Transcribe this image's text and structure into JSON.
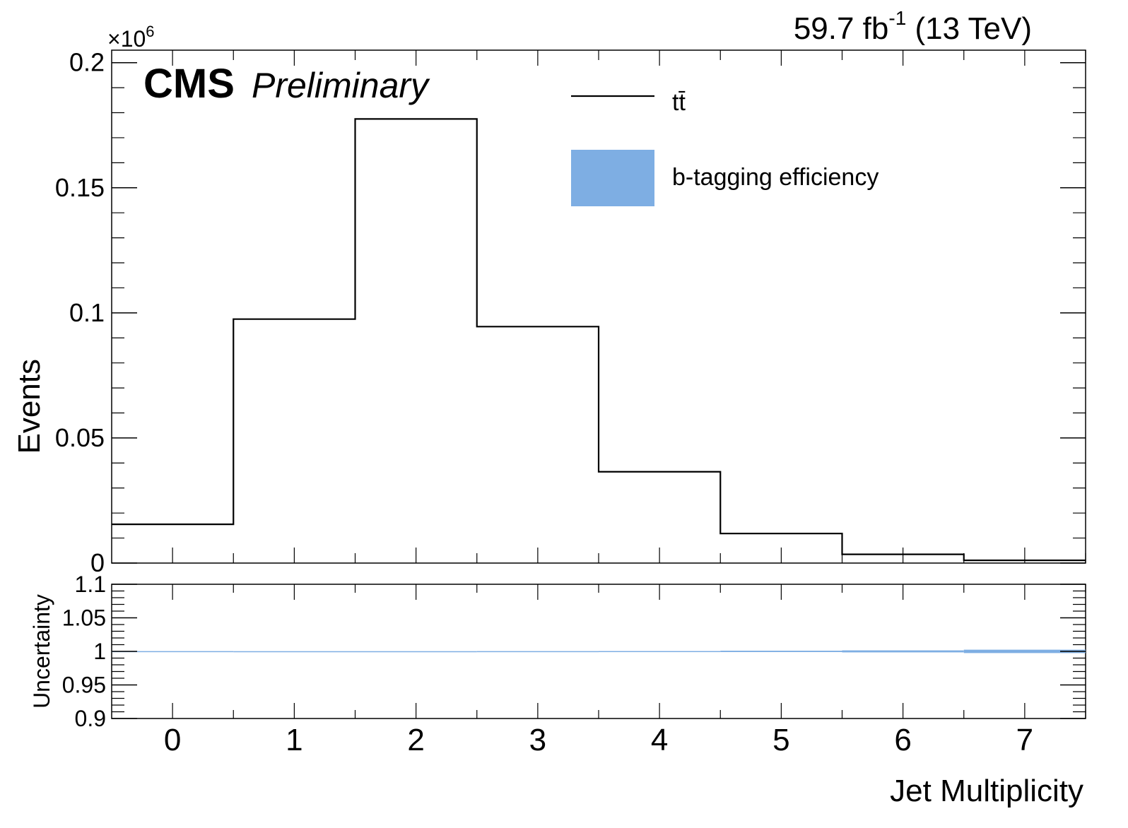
{
  "header": {
    "lumi_text": "59.7 fb",
    "lumi_sup": "-1",
    "energy_text": " (13 TeV)",
    "cms_label": "CMS",
    "prelim_label": "Preliminary",
    "exponent_base": "×10",
    "exponent_power": "6"
  },
  "legend": {
    "ttbar_label": "tt̄",
    "btag_label": "b-tagging efficiency",
    "line_color": "#000000",
    "band_color": "#7eaee3"
  },
  "chart_data": [
    {
      "type": "histogram-step",
      "name": "main-panel",
      "x": [
        0,
        1,
        2,
        3,
        4,
        5,
        6,
        7
      ],
      "bin_edges": [
        -0.5,
        0.5,
        1.5,
        2.5,
        3.5,
        4.5,
        5.5,
        6.5,
        7.5
      ],
      "series": [
        {
          "name": "tt̄",
          "values": [
            15500,
            97500,
            177500,
            94500,
            36500,
            11800,
            3500,
            1100
          ]
        }
      ],
      "xlim": [
        -0.5,
        7.5
      ],
      "ylim": [
        0,
        0.205
      ],
      "y_scale_factor": "×10^6",
      "ylabel": "Events",
      "yticks": [
        "0",
        "0.05",
        "0.1",
        "0.15",
        "0.2"
      ],
      "ytick_values": [
        0,
        0.05,
        0.1,
        0.15,
        0.2
      ],
      "grid": false,
      "legend_position": "top-right"
    },
    {
      "type": "band",
      "name": "ratio-panel",
      "x": [
        0,
        1,
        2,
        3,
        4,
        5,
        6,
        7
      ],
      "bin_edges": [
        -0.5,
        0.5,
        1.5,
        2.5,
        3.5,
        4.5,
        5.5,
        6.5,
        7.5
      ],
      "series": [
        {
          "name": "b-tagging efficiency",
          "low": [
            0.9996,
            0.9997,
            0.9997,
            0.9996,
            0.9995,
            0.999,
            0.9985,
            0.9975
          ],
          "high": [
            1.0004,
            1.0003,
            1.0003,
            1.0004,
            1.0005,
            1.001,
            1.0015,
            1.0025
          ]
        }
      ],
      "xlim": [
        -0.5,
        7.5
      ],
      "ylim": [
        0.9,
        1.1
      ],
      "ylabel": "Uncertainty",
      "xlabel": "Jet Multiplicity",
      "yticks": [
        "0.9",
        "0.95",
        "1",
        "1.05",
        "1.1"
      ],
      "ytick_values": [
        0.9,
        0.95,
        1.0,
        1.05,
        1.1
      ],
      "xticks": [
        "0",
        "1",
        "2",
        "3",
        "4",
        "5",
        "6",
        "7"
      ],
      "grid": false
    }
  ]
}
